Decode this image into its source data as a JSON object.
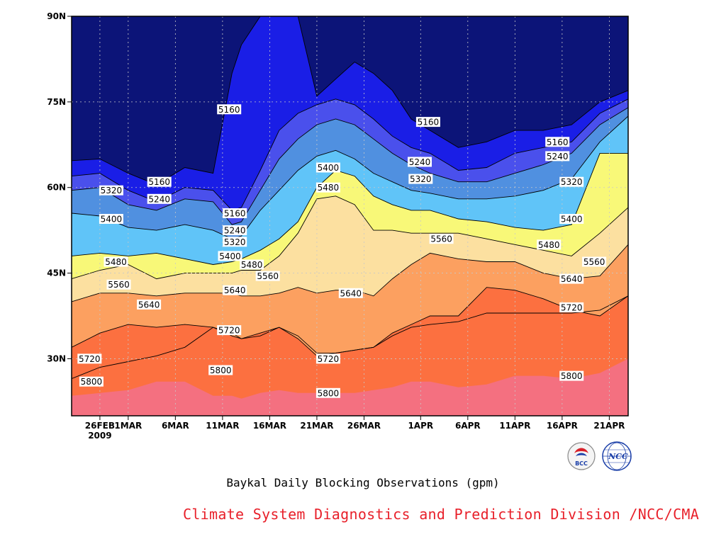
{
  "caption": "Baykal Daily Blocking Observations (gpm)",
  "credit": "Climate System Diagnostics and Prediction Division /NCC/CMA",
  "logos": {
    "left_text": "BCC",
    "right_text": "NCC",
    "left_icon": "bcc-logo-icon",
    "right_icon": "ncc-logo-icon"
  },
  "colors": {
    "c5160": "#0c1478",
    "c5240": "#1a1ee6",
    "c5320": "#4a50ec",
    "c5400": "#5090e0",
    "c5480": "#60c4f8",
    "c5560": "#f8f878",
    "c5640": "#fce0a0",
    "c5720": "#fca060",
    "c5800": "#fc7040",
    "c5880": "#f47080"
  },
  "chart_data": {
    "type": "heatmap",
    "title": "Baykal Daily Blocking Observations (gpm)",
    "xlabel": "",
    "ylabel": "",
    "x_range": [
      "23FEB2009",
      "24APR2009"
    ],
    "y_range": [
      20,
      90
    ],
    "y_ticks": [
      "30N",
      "45N",
      "60N",
      "75N",
      "90N"
    ],
    "x_ticks": [
      "26FEB",
      "1MAR",
      "6MAR",
      "11MAR",
      "16MAR",
      "21MAR",
      "26MAR",
      "1APR",
      "6APR",
      "11APR",
      "16APR",
      "21APR"
    ],
    "x_tick_days": [
      3,
      6,
      11,
      16,
      21,
      26,
      31,
      37,
      42,
      47,
      52,
      57
    ],
    "x_subtick": "2009",
    "grid": true,
    "contour_levels": [
      5160,
      5240,
      5320,
      5400,
      5480,
      5560,
      5640,
      5720,
      5800
    ],
    "contour_days": [
      0,
      3,
      6,
      9,
      12,
      15,
      17,
      18,
      20,
      22,
      24,
      26,
      28,
      30,
      32,
      34,
      36,
      38,
      41,
      44,
      47,
      50,
      53,
      56,
      59
    ],
    "contour_lats": {
      "5160": [
        64.7,
        65,
        62.5,
        60.5,
        63.5,
        62.5,
        80,
        85,
        90,
        90,
        90,
        76,
        79,
        82,
        80,
        77,
        72,
        70,
        67,
        68,
        70,
        70,
        71,
        75,
        77
      ],
      "5240": [
        62,
        62.5,
        59.5,
        57.5,
        60,
        59.5,
        56,
        56.5,
        63,
        70,
        73,
        74.5,
        75.5,
        74.5,
        72,
        69,
        67,
        66,
        63,
        63.5,
        66,
        67,
        68,
        73,
        75.5
      ],
      "5320": [
        59.5,
        60,
        57,
        56,
        58,
        57.5,
        53.5,
        54,
        59.5,
        65,
        68.5,
        71,
        72,
        71,
        68.5,
        66,
        64,
        62.5,
        61,
        61,
        62.5,
        64,
        66,
        71,
        74
      ],
      "5400": [
        55.5,
        55,
        53,
        52.5,
        53.5,
        52.5,
        51,
        51.5,
        56,
        59.5,
        63,
        65.5,
        66.5,
        65,
        62.5,
        61,
        59.5,
        59,
        58,
        58,
        58.5,
        59.5,
        61.5,
        68,
        72.5
      ],
      "5480": [
        48,
        48.5,
        48,
        48.5,
        47.5,
        46.5,
        47,
        47.5,
        49,
        51,
        54,
        60,
        63,
        62,
        58.5,
        57,
        56,
        56,
        54.5,
        54,
        53,
        52.5,
        53.5,
        66,
        66
      ],
      "5560": [
        44,
        45.5,
        46.5,
        44,
        45,
        45,
        45,
        45.5,
        45.5,
        48,
        52,
        58,
        58.5,
        57,
        52.5,
        52.5,
        52,
        52,
        52,
        51,
        50,
        49,
        48,
        52,
        56.5
      ],
      "5640": [
        40,
        41.5,
        41.5,
        41,
        41.5,
        41.5,
        41.5,
        41,
        41,
        41.5,
        42.5,
        41.5,
        42,
        42,
        41,
        44,
        46.5,
        48.5,
        47.5,
        47,
        47,
        45,
        44,
        44.5,
        50
      ],
      "5720": [
        32,
        34.5,
        36,
        35.5,
        36,
        35.5,
        34,
        33.5,
        34.5,
        35.5,
        33.5,
        30.5,
        31,
        31.5,
        32,
        34.5,
        36,
        37.5,
        37.5,
        42.5,
        42,
        40.5,
        38.5,
        37.5,
        41
      ],
      "5800": [
        26.5,
        28.5,
        29.5,
        30.5,
        32,
        35.5,
        34.5,
        33.5,
        34,
        35.5,
        34,
        31,
        31,
        31.5,
        32,
        34,
        35.5,
        36,
        36.5,
        38,
        38,
        38,
        38,
        38.5,
        41
      ],
      "5880": [
        23.5,
        24,
        24.5,
        26,
        26,
        23.5,
        23.5,
        23,
        24,
        24.5,
        24,
        24,
        24,
        24,
        24.5,
        25,
        26,
        26,
        25,
        25.5,
        27,
        27,
        26.5,
        27.5,
        30
      ]
    },
    "annotations": [
      {
        "text": "5160",
        "day": 1.4,
        "lat": 61.5
      },
      {
        "text": "5240",
        "day": 2.6,
        "lat": 58.3
      },
      {
        "text": "5320",
        "day": 0.5,
        "lat": 57.7
      },
      {
        "text": "5400",
        "day": 0.8,
        "lat": 53.5
      },
      {
        "text": "5480",
        "day": 1.0,
        "lat": 44.5
      },
      {
        "text": "5560",
        "day": 1.0,
        "lat": 41.5
      },
      {
        "text": "5640",
        "day": 1.8,
        "lat": 37.5
      },
      {
        "text": "5720",
        "day": 0.7,
        "lat": 28.5
      },
      {
        "text": "5800",
        "day": 0.6,
        "lat": 25.5
      }
    ],
    "contour_labels": [
      {
        "text": "5160",
        "day": 16.7,
        "lat": 73.7
      },
      {
        "text": "5160",
        "day": 9.3,
        "lat": 61.0
      },
      {
        "text": "5320",
        "day": 4.2,
        "lat": 59.5
      },
      {
        "text": "5240",
        "day": 9.3,
        "lat": 58.0
      },
      {
        "text": "5400",
        "day": 4.2,
        "lat": 54.5
      },
      {
        "text": "5480",
        "day": 4.7,
        "lat": 47.0
      },
      {
        "text": "5560",
        "day": 5.0,
        "lat": 43.0
      },
      {
        "text": "5640",
        "day": 8.2,
        "lat": 39.5
      },
      {
        "text": "5720",
        "day": 1.9,
        "lat": 30.0
      },
      {
        "text": "5800",
        "day": 2.1,
        "lat": 26.0
      },
      {
        "text": "5160",
        "day": 17.3,
        "lat": 55.5
      },
      {
        "text": "5240",
        "day": 17.3,
        "lat": 52.5
      },
      {
        "text": "5320",
        "day": 17.3,
        "lat": 50.5
      },
      {
        "text": "5400",
        "day": 16.8,
        "lat": 48.0
      },
      {
        "text": "5480",
        "day": 19.1,
        "lat": 46.5
      },
      {
        "text": "5560",
        "day": 20.8,
        "lat": 44.5
      },
      {
        "text": "5640",
        "day": 17.3,
        "lat": 42.0
      },
      {
        "text": "5720",
        "day": 16.7,
        "lat": 35.0
      },
      {
        "text": "5800",
        "day": 15.8,
        "lat": 28.0
      },
      {
        "text": "5400",
        "day": 27.2,
        "lat": 63.5
      },
      {
        "text": "5480",
        "day": 27.2,
        "lat": 60.0
      },
      {
        "text": "5640",
        "day": 29.6,
        "lat": 41.5
      },
      {
        "text": "5720",
        "day": 27.2,
        "lat": 30.0
      },
      {
        "text": "5800",
        "day": 27.2,
        "lat": 24.0
      },
      {
        "text": "5160",
        "day": 37.8,
        "lat": 71.5
      },
      {
        "text": "5240",
        "day": 36.9,
        "lat": 64.5
      },
      {
        "text": "5320",
        "day": 37.0,
        "lat": 61.5
      },
      {
        "text": "5560",
        "day": 39.2,
        "lat": 51.0
      },
      {
        "text": "5160",
        "day": 51.5,
        "lat": 68.0
      },
      {
        "text": "5240",
        "day": 51.5,
        "lat": 65.5
      },
      {
        "text": "5320",
        "day": 53.0,
        "lat": 61.0
      },
      {
        "text": "5400",
        "day": 53.0,
        "lat": 54.5
      },
      {
        "text": "5480",
        "day": 50.6,
        "lat": 50.0
      },
      {
        "text": "5560",
        "day": 55.4,
        "lat": 47.0
      },
      {
        "text": "5640",
        "day": 53.0,
        "lat": 44.0
      },
      {
        "text": "5720",
        "day": 53.0,
        "lat": 39.0
      },
      {
        "text": "5800",
        "day": 53.0,
        "lat": 27.0
      }
    ]
  }
}
